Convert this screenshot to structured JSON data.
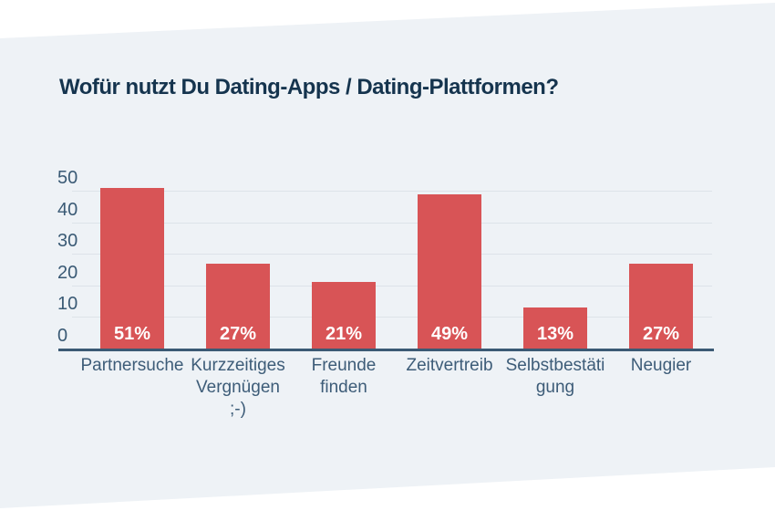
{
  "panel": {
    "page_background": "#ffffff",
    "panel_background": "#eef2f6"
  },
  "chart_data": {
    "type": "bar",
    "title": "Wofür nutzt Du Dating-Apps / Dating-Plattformen?",
    "categories": [
      "Partnersuche",
      "Kurzzeitiges Vergnügen ;-)",
      "Freunde finden",
      "Zeitvertreib",
      "Selbstbestätigung",
      "Neugier"
    ],
    "values": [
      51,
      27,
      21,
      49,
      13,
      27
    ],
    "value_labels": [
      "51%",
      "27%",
      "21%",
      "49%",
      "13%",
      "27%"
    ],
    "y_ticks": [
      0,
      10,
      20,
      30,
      40,
      50
    ],
    "ylim": [
      0,
      52.5
    ],
    "grid": true,
    "legend": false,
    "xlabel": "",
    "ylabel": "",
    "colors": {
      "bar": "#d85456",
      "value_label": "#ffffff",
      "axis_line": "#3b5a74",
      "gridline": "#dde3e9",
      "tick_label": "#3a5a75",
      "category_label": "#3d5c78",
      "title": "#15344e"
    }
  }
}
